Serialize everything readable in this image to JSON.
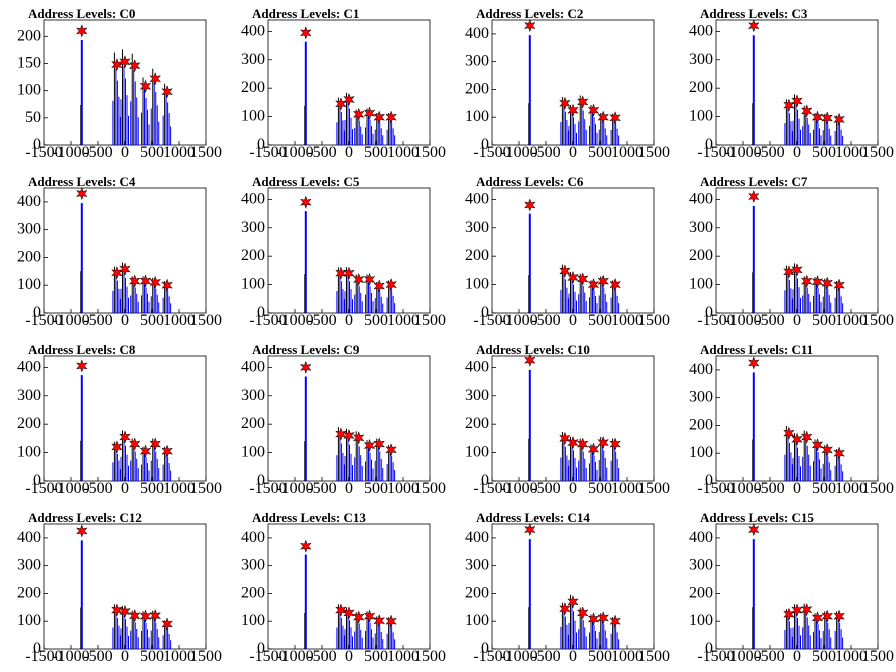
{
  "chart_data": [
    {
      "title": "Address Levels: C0",
      "type": "bar",
      "xlim": [
        -1500,
        1500
      ],
      "ylim": [
        0,
        230
      ],
      "yticks": [
        0,
        50,
        100,
        150,
        200
      ],
      "x_ticks": [
        -1500,
        -1000,
        -500,
        0,
        500,
        1000,
        1500
      ],
      "tall_peak": {
        "x": -800,
        "y": 210
      },
      "peaks": [
        {
          "x": -800,
          "y": 210
        },
        {
          "x": -150,
          "y": 148
        },
        {
          "x": 0,
          "y": 153
        },
        {
          "x": 180,
          "y": 146
        },
        {
          "x": 380,
          "y": 108
        },
        {
          "x": 560,
          "y": 122
        },
        {
          "x": 780,
          "y": 98
        }
      ]
    },
    {
      "title": "Address Levels: C1",
      "type": "bar",
      "xlim": [
        -1500,
        1500
      ],
      "ylim": [
        0,
        440
      ],
      "yticks": [
        0,
        100,
        200,
        300,
        400
      ],
      "x_ticks": [
        -1500,
        -1000,
        -500,
        0,
        500,
        1000,
        1500
      ],
      "tall_peak": {
        "x": -800,
        "y": 395
      },
      "peaks": [
        {
          "x": -800,
          "y": 395
        },
        {
          "x": -150,
          "y": 145
        },
        {
          "x": 0,
          "y": 160
        },
        {
          "x": 180,
          "y": 108
        },
        {
          "x": 380,
          "y": 112
        },
        {
          "x": 560,
          "y": 98
        },
        {
          "x": 780,
          "y": 98
        }
      ]
    },
    {
      "title": "Address Levels: C2",
      "type": "bar",
      "xlim": [
        -1500,
        1500
      ],
      "ylim": [
        0,
        450
      ],
      "yticks": [
        0,
        100,
        200,
        300,
        400
      ],
      "x_ticks": [
        -1500,
        -1000,
        -500,
        0,
        500,
        1000,
        1500
      ],
      "tall_peak": {
        "x": -800,
        "y": 430
      },
      "peaks": [
        {
          "x": -800,
          "y": 430
        },
        {
          "x": -150,
          "y": 150
        },
        {
          "x": 0,
          "y": 125
        },
        {
          "x": 180,
          "y": 155
        },
        {
          "x": 380,
          "y": 125
        },
        {
          "x": 560,
          "y": 100
        },
        {
          "x": 780,
          "y": 98
        }
      ]
    },
    {
      "title": "Address Levels: C3",
      "type": "bar",
      "xlim": [
        -1500,
        1500
      ],
      "ylim": [
        0,
        440
      ],
      "yticks": [
        0,
        100,
        200,
        300,
        400
      ],
      "x_ticks": [
        -1500,
        -1000,
        -500,
        0,
        500,
        1000,
        1500
      ],
      "tall_peak": {
        "x": -800,
        "y": 420
      },
      "peaks": [
        {
          "x": -800,
          "y": 420
        },
        {
          "x": -150,
          "y": 140
        },
        {
          "x": 0,
          "y": 155
        },
        {
          "x": 180,
          "y": 120
        },
        {
          "x": 380,
          "y": 98
        },
        {
          "x": 560,
          "y": 95
        },
        {
          "x": 780,
          "y": 90
        }
      ]
    },
    {
      "title": "Address Levels: C4",
      "type": "bar",
      "xlim": [
        -1500,
        1500
      ],
      "ylim": [
        0,
        450
      ],
      "yticks": [
        0,
        100,
        200,
        300,
        400
      ],
      "x_ticks": [
        -1500,
        -1000,
        -500,
        0,
        500,
        1000,
        1500
      ],
      "tall_peak": {
        "x": -800,
        "y": 430
      },
      "peaks": [
        {
          "x": -800,
          "y": 430
        },
        {
          "x": -150,
          "y": 145
        },
        {
          "x": 0,
          "y": 158
        },
        {
          "x": 180,
          "y": 115
        },
        {
          "x": 380,
          "y": 115
        },
        {
          "x": 560,
          "y": 110
        },
        {
          "x": 780,
          "y": 100
        }
      ]
    },
    {
      "title": "Address Levels: C5",
      "type": "bar",
      "xlim": [
        -1500,
        1500
      ],
      "ylim": [
        0,
        440
      ],
      "yticks": [
        0,
        100,
        200,
        300,
        400
      ],
      "x_ticks": [
        -1500,
        -1000,
        -500,
        0,
        500,
        1000,
        1500
      ],
      "tall_peak": {
        "x": -800,
        "y": 390
      },
      "peaks": [
        {
          "x": -800,
          "y": 390
        },
        {
          "x": -150,
          "y": 140
        },
        {
          "x": 0,
          "y": 140
        },
        {
          "x": 180,
          "y": 118
        },
        {
          "x": 380,
          "y": 118
        },
        {
          "x": 560,
          "y": 95
        },
        {
          "x": 780,
          "y": 100
        }
      ]
    },
    {
      "title": "Address Levels: C6",
      "type": "bar",
      "xlim": [
        -1500,
        1500
      ],
      "ylim": [
        0,
        440
      ],
      "yticks": [
        0,
        100,
        200,
        300,
        400
      ],
      "x_ticks": [
        -1500,
        -1000,
        -500,
        0,
        500,
        1000,
        1500
      ],
      "tall_peak": {
        "x": -800,
        "y": 380
      },
      "peaks": [
        {
          "x": -800,
          "y": 380
        },
        {
          "x": -150,
          "y": 148
        },
        {
          "x": 0,
          "y": 125
        },
        {
          "x": 180,
          "y": 120
        },
        {
          "x": 380,
          "y": 100
        },
        {
          "x": 560,
          "y": 112
        },
        {
          "x": 780,
          "y": 100
        }
      ]
    },
    {
      "title": "Address Levels: C7",
      "type": "bar",
      "xlim": [
        -1500,
        1500
      ],
      "ylim": [
        0,
        440
      ],
      "yticks": [
        0,
        100,
        200,
        300,
        400
      ],
      "x_ticks": [
        -1500,
        -1000,
        -500,
        0,
        500,
        1000,
        1500
      ],
      "tall_peak": {
        "x": -800,
        "y": 410
      },
      "peaks": [
        {
          "x": -800,
          "y": 410
        },
        {
          "x": -150,
          "y": 145
        },
        {
          "x": 0,
          "y": 152
        },
        {
          "x": 180,
          "y": 112
        },
        {
          "x": 380,
          "y": 110
        },
        {
          "x": 560,
          "y": 105
        },
        {
          "x": 780,
          "y": 98
        }
      ]
    },
    {
      "title": "Address Levels: C8",
      "type": "bar",
      "xlim": [
        -1500,
        1500
      ],
      "ylim": [
        0,
        440
      ],
      "yticks": [
        0,
        100,
        200,
        300,
        400
      ],
      "x_ticks": [
        -1500,
        -1000,
        -500,
        0,
        500,
        1000,
        1500
      ],
      "tall_peak": {
        "x": -800,
        "y": 405
      },
      "peaks": [
        {
          "x": -800,
          "y": 405
        },
        {
          "x": -150,
          "y": 120
        },
        {
          "x": 0,
          "y": 155
        },
        {
          "x": 180,
          "y": 130
        },
        {
          "x": 380,
          "y": 105
        },
        {
          "x": 560,
          "y": 130
        },
        {
          "x": 780,
          "y": 105
        }
      ]
    },
    {
      "title": "Address Levels: C9",
      "type": "bar",
      "xlim": [
        -1500,
        1500
      ],
      "ylim": [
        0,
        440
      ],
      "yticks": [
        0,
        100,
        200,
        300,
        400
      ],
      "x_ticks": [
        -1500,
        -1000,
        -500,
        0,
        500,
        1000,
        1500
      ],
      "tall_peak": {
        "x": -800,
        "y": 400
      },
      "peaks": [
        {
          "x": -800,
          "y": 400
        },
        {
          "x": -150,
          "y": 165
        },
        {
          "x": 0,
          "y": 160
        },
        {
          "x": 180,
          "y": 152
        },
        {
          "x": 380,
          "y": 125
        },
        {
          "x": 560,
          "y": 130
        },
        {
          "x": 780,
          "y": 110
        }
      ]
    },
    {
      "title": "Address Levels: C10",
      "type": "bar",
      "xlim": [
        -1500,
        1500
      ],
      "ylim": [
        0,
        440
      ],
      "yticks": [
        0,
        100,
        200,
        300,
        400
      ],
      "x_ticks": [
        -1500,
        -1000,
        -500,
        0,
        500,
        1000,
        1500
      ],
      "tall_peak": {
        "x": -800,
        "y": 425
      },
      "peaks": [
        {
          "x": -800,
          "y": 425
        },
        {
          "x": -150,
          "y": 150
        },
        {
          "x": 0,
          "y": 135
        },
        {
          "x": 180,
          "y": 130
        },
        {
          "x": 380,
          "y": 112
        },
        {
          "x": 560,
          "y": 135
        },
        {
          "x": 780,
          "y": 130
        }
      ]
    },
    {
      "title": "Address Levels: C11",
      "type": "bar",
      "xlim": [
        -1500,
        1500
      ],
      "ylim": [
        0,
        450
      ],
      "yticks": [
        0,
        100,
        200,
        300,
        400
      ],
      "x_ticks": [
        -1500,
        -1000,
        -500,
        0,
        500,
        1000,
        1500
      ],
      "tall_peak": {
        "x": -800,
        "y": 425
      },
      "peaks": [
        {
          "x": -800,
          "y": 425
        },
        {
          "x": -150,
          "y": 172
        },
        {
          "x": 0,
          "y": 150
        },
        {
          "x": 180,
          "y": 158
        },
        {
          "x": 380,
          "y": 130
        },
        {
          "x": 560,
          "y": 112
        },
        {
          "x": 780,
          "y": 100
        }
      ]
    },
    {
      "title": "Address Levels: C12",
      "type": "bar",
      "xlim": [
        -1500,
        1500
      ],
      "ylim": [
        0,
        450
      ],
      "yticks": [
        0,
        100,
        200,
        300,
        400
      ],
      "x_ticks": [
        -1500,
        -1000,
        -500,
        0,
        500,
        1000,
        1500
      ],
      "tall_peak": {
        "x": -800,
        "y": 425
      },
      "peaks": [
        {
          "x": -800,
          "y": 425
        },
        {
          "x": -150,
          "y": 140
        },
        {
          "x": 0,
          "y": 135
        },
        {
          "x": 180,
          "y": 120
        },
        {
          "x": 380,
          "y": 118
        },
        {
          "x": 560,
          "y": 120
        },
        {
          "x": 780,
          "y": 90
        }
      ]
    },
    {
      "title": "Address Levels: C13",
      "type": "bar",
      "xlim": [
        -1500,
        1500
      ],
      "ylim": [
        0,
        450
      ],
      "yticks": [
        0,
        100,
        200,
        300,
        400
      ],
      "x_ticks": [
        -1500,
        -1000,
        -500,
        0,
        500,
        1000,
        1500
      ],
      "tall_peak": {
        "x": -800,
        "y": 370
      },
      "peaks": [
        {
          "x": -800,
          "y": 370
        },
        {
          "x": -150,
          "y": 140
        },
        {
          "x": 0,
          "y": 130
        },
        {
          "x": 180,
          "y": 115
        },
        {
          "x": 380,
          "y": 118
        },
        {
          "x": 560,
          "y": 102
        },
        {
          "x": 780,
          "y": 100
        }
      ]
    },
    {
      "title": "Address Levels: C14",
      "type": "bar",
      "xlim": [
        -1500,
        1500
      ],
      "ylim": [
        0,
        450
      ],
      "yticks": [
        0,
        100,
        200,
        300,
        400
      ],
      "x_ticks": [
        -1500,
        -1000,
        -500,
        0,
        500,
        1000,
        1500
      ],
      "tall_peak": {
        "x": -800,
        "y": 430
      },
      "peaks": [
        {
          "x": -800,
          "y": 430
        },
        {
          "x": -150,
          "y": 145
        },
        {
          "x": 0,
          "y": 170
        },
        {
          "x": 180,
          "y": 130
        },
        {
          "x": 380,
          "y": 108
        },
        {
          "x": 560,
          "y": 112
        },
        {
          "x": 780,
          "y": 100
        }
      ]
    },
    {
      "title": "Address Levels: C15",
      "type": "bar",
      "xlim": [
        -1500,
        1500
      ],
      "ylim": [
        0,
        450
      ],
      "yticks": [
        0,
        100,
        200,
        300,
        400
      ],
      "x_ticks": [
        -1500,
        -1000,
        -500,
        0,
        500,
        1000,
        1500
      ],
      "tall_peak": {
        "x": -800,
        "y": 430
      },
      "peaks": [
        {
          "x": -800,
          "y": 430
        },
        {
          "x": -150,
          "y": 125
        },
        {
          "x": 0,
          "y": 140
        },
        {
          "x": 180,
          "y": 142
        },
        {
          "x": 380,
          "y": 112
        },
        {
          "x": 560,
          "y": 118
        },
        {
          "x": 780,
          "y": 118
        }
      ]
    }
  ],
  "colors": {
    "bar": "#0000ff",
    "black_bar": "#000000",
    "marker_fill": "#ff0000",
    "marker_edge": "#000000"
  },
  "marker_icon": "red-star-icon"
}
